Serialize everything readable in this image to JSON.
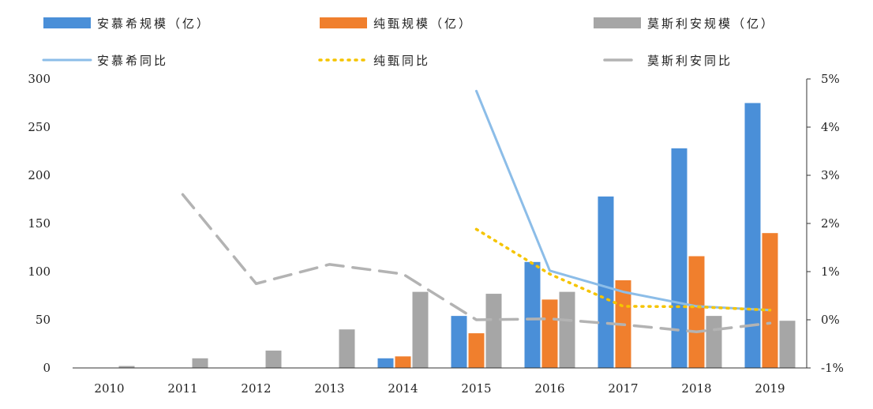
{
  "chart_data": {
    "type": "bar",
    "categories": [
      "2010",
      "2011",
      "2012",
      "2013",
      "2014",
      "2015",
      "2016",
      "2017",
      "2018",
      "2019"
    ],
    "series": [
      {
        "name": "安慕希规模（亿）",
        "kind": "bar",
        "axis": "left",
        "color": "#4a8fd8",
        "values": [
          null,
          null,
          null,
          null,
          10,
          54,
          110,
          178,
          228,
          275
        ]
      },
      {
        "name": "纯甄规模（亿）",
        "kind": "bar",
        "axis": "left",
        "color": "#f07f2d",
        "values": [
          null,
          null,
          null,
          null,
          12,
          36,
          71,
          91,
          116,
          140
        ]
      },
      {
        "name": "莫斯利安规模（亿）",
        "kind": "bar",
        "axis": "left",
        "color": "#a6a6a6",
        "values": [
          2,
          10,
          18,
          40,
          79,
          77,
          79,
          null,
          54,
          49
        ]
      },
      {
        "name": "安慕希同比",
        "kind": "line",
        "style": "solid",
        "axis": "right",
        "color": "#8cbde8",
        "values": [
          null,
          null,
          null,
          null,
          null,
          4.75,
          1.02,
          0.58,
          0.28,
          0.2
        ]
      },
      {
        "name": "纯甄同比",
        "kind": "line",
        "style": "dotted",
        "axis": "right",
        "color": "#f5c400",
        "values": [
          null,
          null,
          null,
          null,
          null,
          1.88,
          0.95,
          0.28,
          0.27,
          0.2
        ]
      },
      {
        "name": "莫斯利安同比",
        "kind": "line",
        "style": "dashed",
        "axis": "right",
        "color": "#b3b3b3",
        "values": [
          null,
          2.6,
          0.75,
          1.15,
          0.95,
          0.0,
          0.02,
          -0.1,
          -0.25,
          -0.07
        ]
      }
    ],
    "y_left": {
      "ylim": [
        0,
        300
      ],
      "ticks": [
        "0",
        "50",
        "100",
        "150",
        "200",
        "250",
        "300"
      ]
    },
    "y_right": {
      "ylim": [
        -1,
        5
      ],
      "ticks": [
        "-1%",
        "0%",
        "1%",
        "2%",
        "3%",
        "4%",
        "5%"
      ]
    },
    "grid": false,
    "legend_position": "top"
  }
}
